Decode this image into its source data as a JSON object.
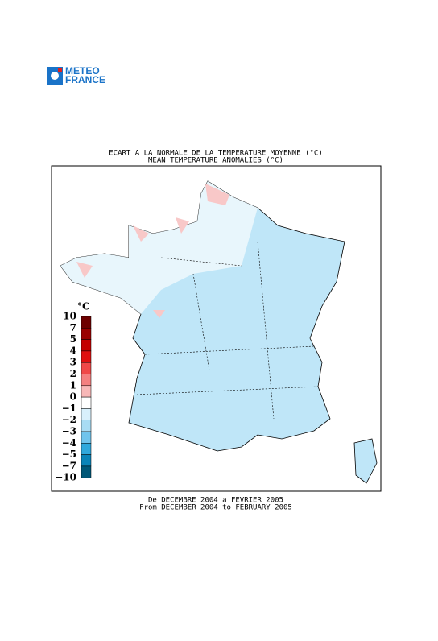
{
  "logo": {
    "line1": "METEO",
    "line2": "FRANCE"
  },
  "title": {
    "line1": "ECART A LA NORMALE DE LA TEMPERATURE MOYENNE (°C)",
    "line2": "MEAN TEMPERATURE ANOMALIES (°C)"
  },
  "legend": {
    "unit": "°C",
    "labels": [
      "10",
      "7",
      "5",
      "4",
      "3",
      "2",
      "1",
      "0",
      "−1",
      "−2",
      "−3",
      "−4",
      "−5",
      "−7",
      "−10"
    ],
    "colors": [
      "#6e0000",
      "#9a0000",
      "#c40000",
      "#e01010",
      "#f04848",
      "#f48080",
      "#f8b8b8",
      "#ffffff",
      "#d8f0fc",
      "#a8dcf4",
      "#70c4ec",
      "#30a8dc",
      "#0a84b8",
      "#005878"
    ]
  },
  "footer": {
    "line1": "De DECEMBRE 2004 a FEVRIER 2005",
    "line2": "From DECEMBER 2004 to FEBRUARY 2005"
  }
}
